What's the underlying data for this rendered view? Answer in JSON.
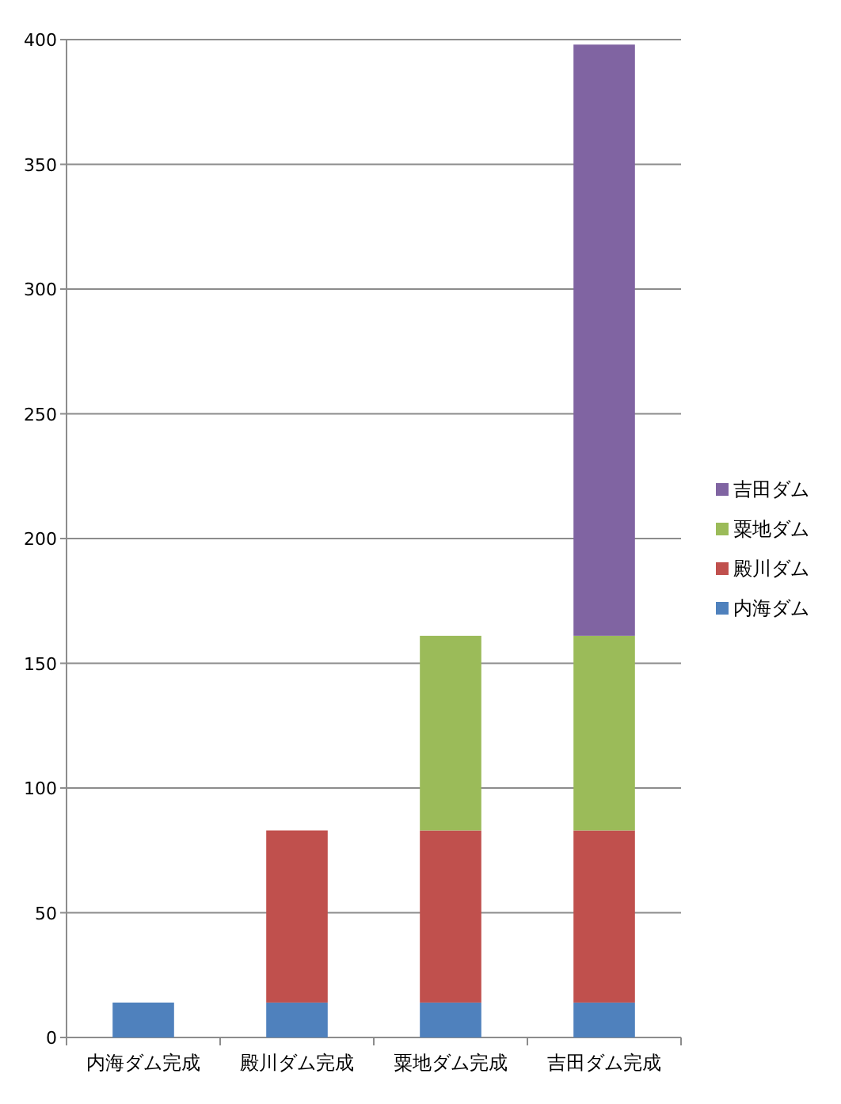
{
  "chart_data": {
    "type": "bar",
    "stacked": true,
    "categories": [
      "内海ダム完成",
      "殿川ダム完成",
      "粟地ダム完成",
      "吉田ダム完成"
    ],
    "series": [
      {
        "name": "内海ダム",
        "color": "#4f81bd",
        "values": [
          14,
          14,
          14,
          14
        ]
      },
      {
        "name": "殿川ダム",
        "color": "#c0504d",
        "values": [
          null,
          69,
          69,
          69
        ]
      },
      {
        "name": "粟地ダム",
        "color": "#9bbb59",
        "values": [
          null,
          null,
          78,
          78
        ]
      },
      {
        "name": "吉田ダム",
        "color": "#8064a2",
        "values": [
          null,
          null,
          null,
          237
        ]
      }
    ],
    "ylim": [
      0,
      400
    ],
    "yticks": [
      0,
      50,
      100,
      150,
      200,
      250,
      300,
      350,
      400
    ],
    "grid": "y",
    "legend": "right"
  }
}
